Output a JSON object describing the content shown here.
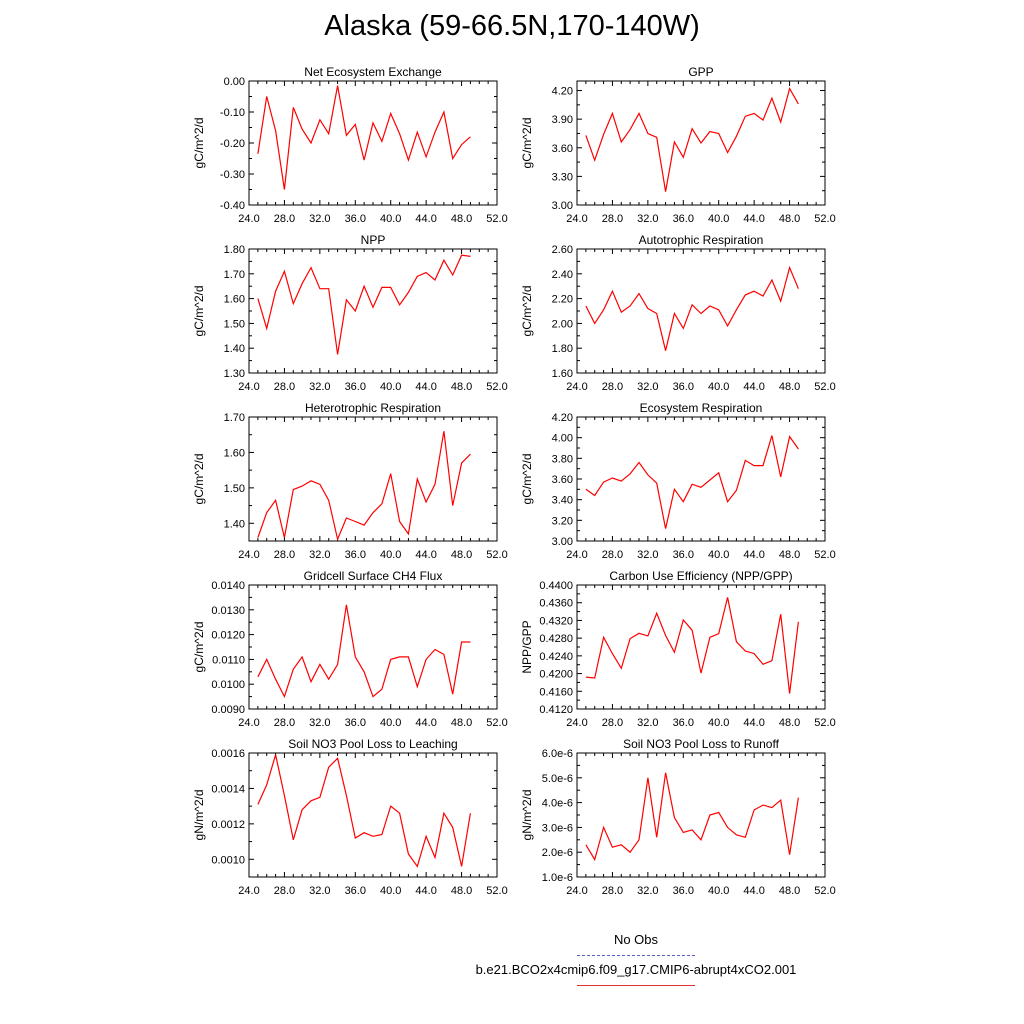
{
  "title": "Alaska (59-66.5N,170-140W)",
  "legend": {
    "obs_label": "No Obs",
    "obs_color": "#5a5ac8",
    "model_label": "b.e21.BCO2x4cmip6.f09_g17.CMIP6-abrupt4xCO2.001",
    "model_color": "#e03030"
  },
  "line_color": "#ff0000",
  "chart_data": [
    {
      "type": "line",
      "title": "Net Ecosystem Exchange",
      "ylabel": "gC/m^2/d",
      "xlim": [
        24,
        52
      ],
      "ylim": [
        -0.4,
        0.0
      ],
      "xticks": [
        "24.0",
        "28.0",
        "32.0",
        "36.0",
        "40.0",
        "44.0",
        "48.0",
        "52.0"
      ],
      "yticks": [
        "-0.40",
        "-0.30",
        "-0.20",
        "-0.10",
        "0.00"
      ],
      "x": [
        25,
        26,
        27,
        28,
        29,
        30,
        31,
        32,
        33,
        34,
        35,
        36,
        37,
        38,
        39,
        40,
        41,
        42,
        43,
        44,
        45,
        46,
        47,
        48,
        49
      ],
      "y": [
        -0.235,
        -0.05,
        -0.16,
        -0.35,
        -0.085,
        -0.155,
        -0.2,
        -0.125,
        -0.17,
        -0.015,
        -0.175,
        -0.14,
        -0.255,
        -0.135,
        -0.195,
        -0.105,
        -0.17,
        -0.255,
        -0.165,
        -0.245,
        -0.165,
        -0.1,
        -0.25,
        -0.205,
        -0.18
      ]
    },
    {
      "type": "line",
      "title": "GPP",
      "ylabel": "gC/m^2/d",
      "xlim": [
        24,
        52
      ],
      "ylim": [
        3.0,
        4.3
      ],
      "xticks": [
        "24.0",
        "28.0",
        "32.0",
        "36.0",
        "40.0",
        "44.0",
        "48.0",
        "52.0"
      ],
      "yticks": [
        "3.00",
        "3.30",
        "3.60",
        "3.90",
        "4.20"
      ],
      "x": [
        25,
        26,
        27,
        28,
        29,
        30,
        31,
        32,
        33,
        34,
        35,
        36,
        37,
        38,
        39,
        40,
        41,
        42,
        43,
        44,
        45,
        46,
        47,
        48,
        49
      ],
      "y": [
        3.73,
        3.47,
        3.74,
        3.96,
        3.66,
        3.79,
        3.96,
        3.75,
        3.71,
        3.14,
        3.66,
        3.5,
        3.8,
        3.65,
        3.77,
        3.75,
        3.55,
        3.72,
        3.93,
        3.96,
        3.89,
        4.12,
        3.87,
        4.22,
        4.06
      ]
    },
    {
      "type": "line",
      "title": "NPP",
      "ylabel": "gC/m^2/d",
      "xlim": [
        24,
        52
      ],
      "ylim": [
        1.3,
        1.8
      ],
      "xticks": [
        "24.0",
        "28.0",
        "32.0",
        "36.0",
        "40.0",
        "44.0",
        "48.0",
        "52.0"
      ],
      "yticks": [
        "1.30",
        "1.40",
        "1.50",
        "1.60",
        "1.70",
        "1.80"
      ],
      "x": [
        25,
        26,
        27,
        28,
        29,
        30,
        31,
        32,
        33,
        34,
        35,
        36,
        37,
        38,
        39,
        40,
        41,
        42,
        43,
        44,
        45,
        46,
        47,
        48,
        49
      ],
      "y": [
        1.6,
        1.48,
        1.63,
        1.71,
        1.58,
        1.66,
        1.725,
        1.64,
        1.64,
        1.375,
        1.595,
        1.55,
        1.65,
        1.565,
        1.645,
        1.645,
        1.575,
        1.625,
        1.69,
        1.705,
        1.675,
        1.755,
        1.695,
        1.775,
        1.77
      ]
    },
    {
      "type": "line",
      "title": "Autotrophic Respiration",
      "ylabel": "gC/m^2/d",
      "xlim": [
        24,
        52
      ],
      "ylim": [
        1.6,
        2.6
      ],
      "xticks": [
        "24.0",
        "28.0",
        "32.0",
        "36.0",
        "40.0",
        "44.0",
        "48.0",
        "52.0"
      ],
      "yticks": [
        "1.60",
        "1.80",
        "2.00",
        "2.20",
        "2.40",
        "2.60"
      ],
      "x": [
        25,
        26,
        27,
        28,
        29,
        30,
        31,
        32,
        33,
        34,
        35,
        36,
        37,
        38,
        39,
        40,
        41,
        42,
        43,
        44,
        45,
        46,
        47,
        48,
        49
      ],
      "y": [
        2.14,
        2.0,
        2.11,
        2.26,
        2.09,
        2.14,
        2.24,
        2.12,
        2.08,
        1.78,
        2.08,
        1.96,
        2.15,
        2.08,
        2.14,
        2.11,
        1.98,
        2.11,
        2.23,
        2.26,
        2.22,
        2.35,
        2.18,
        2.45,
        2.28
      ]
    },
    {
      "type": "line",
      "title": "Heterotrophic Respiration",
      "ylabel": "gC/m^2/d",
      "xlim": [
        24,
        52
      ],
      "ylim": [
        1.35,
        1.7
      ],
      "xticks": [
        "24.0",
        "28.0",
        "32.0",
        "36.0",
        "40.0",
        "44.0",
        "48.0",
        "52.0"
      ],
      "yticks": [
        "1.40",
        "1.50",
        "1.60",
        "1.70"
      ],
      "x": [
        25,
        26,
        27,
        28,
        29,
        30,
        31,
        32,
        33,
        34,
        35,
        36,
        37,
        38,
        39,
        40,
        41,
        42,
        43,
        44,
        45,
        46,
        47,
        48,
        49
      ],
      "y": [
        1.36,
        1.43,
        1.465,
        1.36,
        1.495,
        1.505,
        1.52,
        1.51,
        1.465,
        1.355,
        1.415,
        1.405,
        1.395,
        1.43,
        1.455,
        1.54,
        1.405,
        1.37,
        1.525,
        1.46,
        1.51,
        1.66,
        1.45,
        1.57,
        1.595
      ]
    },
    {
      "type": "line",
      "title": "Ecosystem Respiration",
      "ylabel": "gC/m^2/d",
      "xlim": [
        24,
        52
      ],
      "ylim": [
        3.0,
        4.2
      ],
      "xticks": [
        "24.0",
        "28.0",
        "32.0",
        "36.0",
        "40.0",
        "44.0",
        "48.0",
        "52.0"
      ],
      "yticks": [
        "3.00",
        "3.20",
        "3.40",
        "3.60",
        "3.80",
        "4.00",
        "4.20"
      ],
      "x": [
        25,
        26,
        27,
        28,
        29,
        30,
        31,
        32,
        33,
        34,
        35,
        36,
        37,
        38,
        39,
        40,
        41,
        42,
        43,
        44,
        45,
        46,
        47,
        48,
        49
      ],
      "y": [
        3.5,
        3.44,
        3.57,
        3.61,
        3.58,
        3.65,
        3.76,
        3.64,
        3.56,
        3.12,
        3.5,
        3.38,
        3.55,
        3.52,
        3.59,
        3.66,
        3.38,
        3.49,
        3.78,
        3.73,
        3.73,
        4.02,
        3.62,
        4.01,
        3.89
      ]
    },
    {
      "type": "line",
      "title": "Gridcell Surface CH4 Flux",
      "ylabel": "gC/m^2/d",
      "xlim": [
        24,
        52
      ],
      "ylim": [
        0.009,
        0.014
      ],
      "xticks": [
        "24.0",
        "28.0",
        "32.0",
        "36.0",
        "40.0",
        "44.0",
        "48.0",
        "52.0"
      ],
      "yticks": [
        "0.0090",
        "0.0100",
        "0.0110",
        "0.0120",
        "0.0130",
        "0.0140"
      ],
      "x": [
        25,
        26,
        27,
        28,
        29,
        30,
        31,
        32,
        33,
        34,
        35,
        36,
        37,
        38,
        39,
        40,
        41,
        42,
        43,
        44,
        45,
        46,
        47,
        48,
        49
      ],
      "y": [
        0.0103,
        0.011,
        0.0102,
        0.0095,
        0.0106,
        0.0111,
        0.0101,
        0.0108,
        0.0102,
        0.0108,
        0.0132,
        0.0111,
        0.0105,
        0.0095,
        0.0098,
        0.011,
        0.0111,
        0.0111,
        0.0099,
        0.011,
        0.0114,
        0.0112,
        0.0096,
        0.0117,
        0.0117
      ]
    },
    {
      "type": "line",
      "title": "Carbon Use Efficiency (NPP/GPP)",
      "ylabel": "NPP/GPP",
      "xlim": [
        24,
        52
      ],
      "ylim": [
        0.412,
        0.44
      ],
      "xticks": [
        "24.0",
        "28.0",
        "32.0",
        "36.0",
        "40.0",
        "44.0",
        "48.0",
        "52.0"
      ],
      "yticks": [
        "0.4120",
        "0.4160",
        "0.4200",
        "0.4240",
        "0.4280",
        "0.4320",
        "0.4360",
        "0.4400"
      ],
      "x": [
        25,
        26,
        27,
        28,
        29,
        30,
        31,
        32,
        33,
        34,
        35,
        36,
        37,
        38,
        39,
        40,
        41,
        42,
        43,
        44,
        45,
        46,
        47,
        48,
        49
      ],
      "y": [
        0.4192,
        0.419,
        0.4282,
        0.4245,
        0.4212,
        0.4279,
        0.4291,
        0.4285,
        0.4336,
        0.4286,
        0.4248,
        0.4321,
        0.4298,
        0.4201,
        0.4282,
        0.429,
        0.4372,
        0.4272,
        0.4251,
        0.4245,
        0.4221,
        0.4229,
        0.4334,
        0.4155,
        0.4317
      ]
    },
    {
      "type": "line",
      "title": "Soil NO3 Pool Loss to Leaching",
      "ylabel": "gN/m^2/d",
      "xlim": [
        24,
        52
      ],
      "ylim": [
        0.0009,
        0.0016
      ],
      "xticks": [
        "24.0",
        "28.0",
        "32.0",
        "36.0",
        "40.0",
        "44.0",
        "48.0",
        "52.0"
      ],
      "yticks": [
        "0.0010",
        "0.0012",
        "0.0014",
        "0.0016"
      ],
      "x": [
        25,
        26,
        27,
        28,
        29,
        30,
        31,
        32,
        33,
        34,
        35,
        36,
        37,
        38,
        39,
        40,
        41,
        42,
        43,
        44,
        45,
        46,
        47,
        48,
        49
      ],
      "y": [
        0.00131,
        0.00142,
        0.00159,
        0.00136,
        0.00111,
        0.00128,
        0.00133,
        0.00135,
        0.00152,
        0.00157,
        0.00136,
        0.00112,
        0.00115,
        0.00113,
        0.00114,
        0.0013,
        0.00126,
        0.00103,
        0.00096,
        0.00113,
        0.00101,
        0.00126,
        0.00118,
        0.00096,
        0.00126
      ]
    },
    {
      "type": "line",
      "title": "Soil NO3 Pool Loss to Runoff",
      "ylabel": "gN/m^2/d",
      "xlim": [
        24,
        52
      ],
      "ylim": [
        1e-06,
        6e-06
      ],
      "xticks": [
        "24.0",
        "28.0",
        "32.0",
        "36.0",
        "40.0",
        "44.0",
        "48.0",
        "52.0"
      ],
      "yticks": [
        "1.0e-6",
        "2.0e-6",
        "3.0e-6",
        "4.0e-6",
        "5.0e-6",
        "6.0e-6"
      ],
      "x": [
        25,
        26,
        27,
        28,
        29,
        30,
        31,
        32,
        33,
        34,
        35,
        36,
        37,
        38,
        39,
        40,
        41,
        42,
        43,
        44,
        45,
        46,
        47,
        48,
        49
      ],
      "y": [
        2.3e-06,
        1.7e-06,
        3e-06,
        2.2e-06,
        2.3e-06,
        2e-06,
        2.5e-06,
        5e-06,
        2.6e-06,
        5.2e-06,
        3.4e-06,
        2.8e-06,
        2.9e-06,
        2.5e-06,
        3.5e-06,
        3.6e-06,
        3e-06,
        2.7e-06,
        2.6e-06,
        3.7e-06,
        3.9e-06,
        3.8e-06,
        4.1e-06,
        1.9e-06,
        4.2e-06
      ]
    }
  ]
}
